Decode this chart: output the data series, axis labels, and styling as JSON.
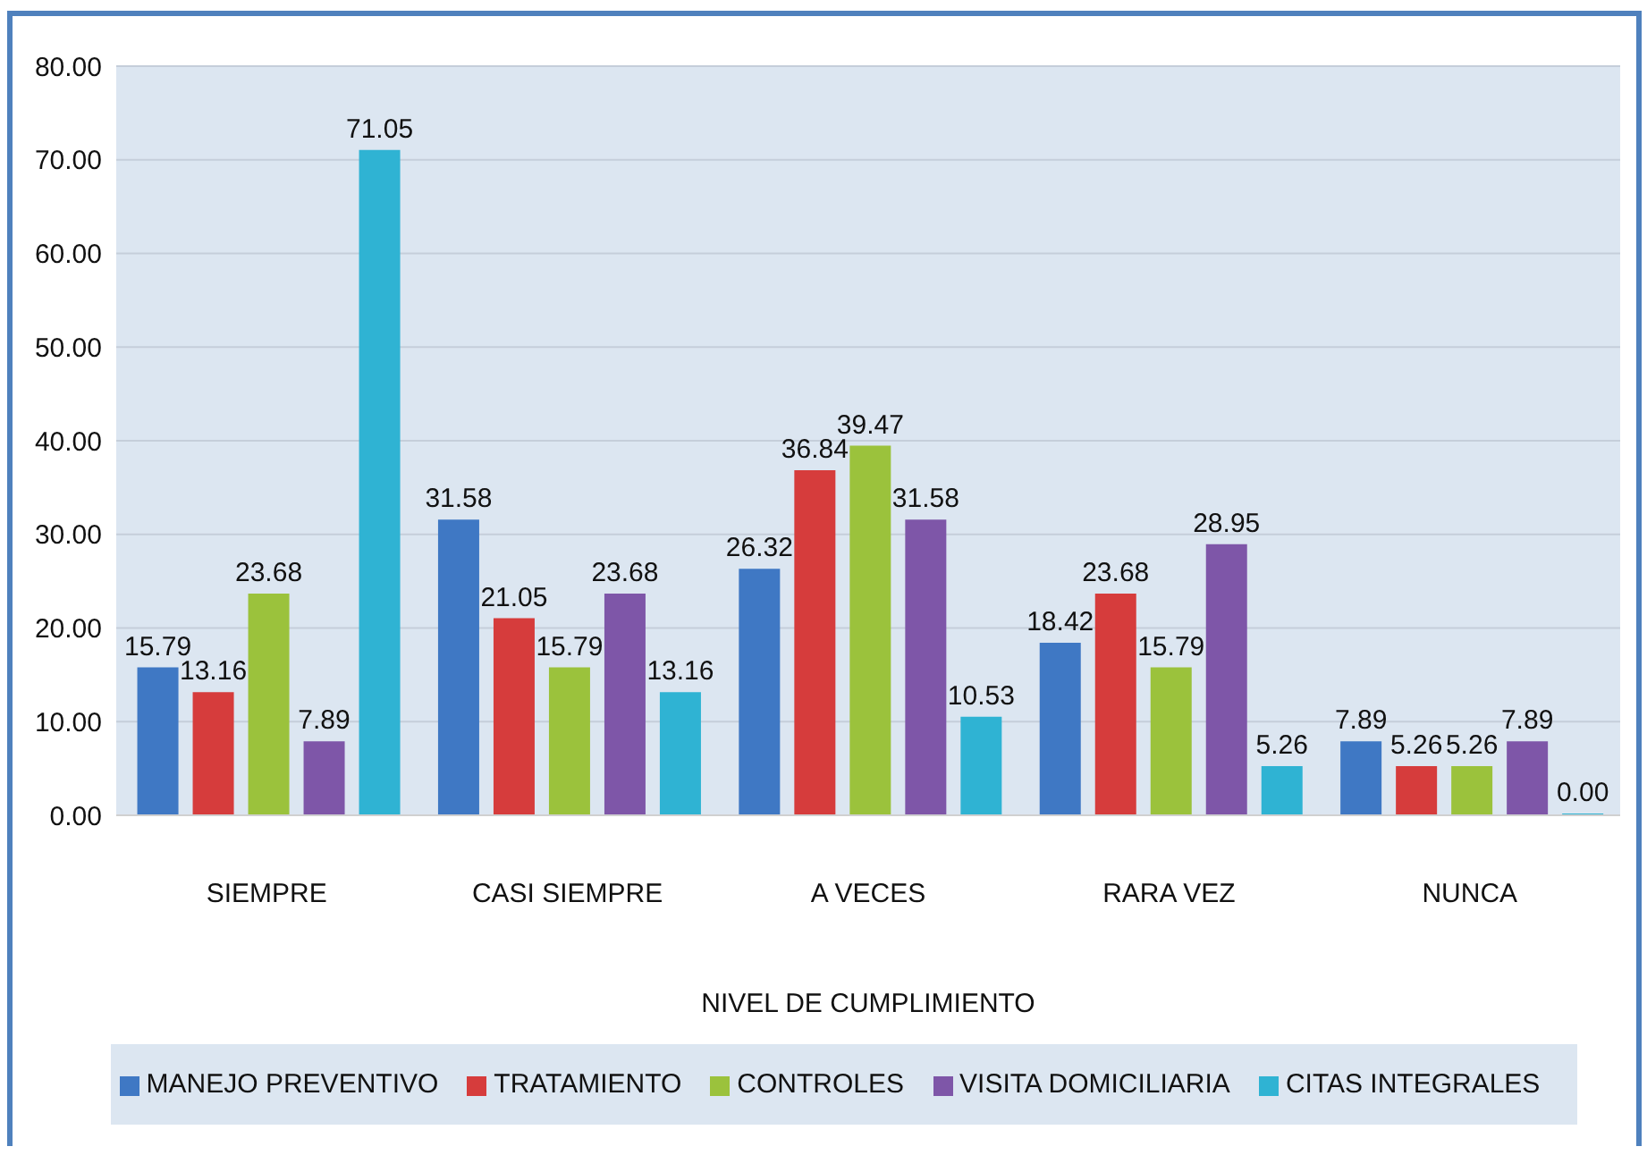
{
  "chart_data": {
    "type": "bar",
    "categories": [
      "SIEMPRE",
      "CASI SIEMPRE",
      "A VECES",
      "RARA VEZ",
      "NUNCA"
    ],
    "xlabel": "NIVEL DE CUMPLIMIENTO",
    "series": [
      {
        "name": "MANEJO PREVENTIVO",
        "color": "#3f78c4",
        "values": [
          15.79,
          31.58,
          26.32,
          18.42,
          7.89
        ],
        "value_labels": [
          "15.79",
          "31.58",
          "26.32",
          "18.42",
          "7.89"
        ]
      },
      {
        "name": "TRATAMIENTO",
        "color": "#d63c3c",
        "values": [
          13.16,
          21.05,
          36.84,
          23.68,
          5.26
        ],
        "value_labels": [
          "13.16",
          "21.05",
          "36.84",
          "23.68",
          "5.26"
        ]
      },
      {
        "name": "CONTROLES",
        "color": "#9bc23c",
        "values": [
          23.68,
          15.79,
          39.47,
          15.79,
          5.26
        ],
        "value_labels": [
          "23.68",
          "15.79",
          "39.47",
          "15.79",
          "5.26"
        ]
      },
      {
        "name": "VISITA DOMICILIARIA",
        "color": "#7e56a8",
        "values": [
          7.89,
          23.68,
          31.58,
          28.95,
          7.89
        ],
        "value_labels": [
          "7.89",
          "23.68",
          "31.58",
          "28.95",
          "7.89"
        ]
      },
      {
        "name": "CITAS INTEGRALES",
        "color": "#2fb3d3",
        "values": [
          71.05,
          13.16,
          10.53,
          5.26,
          0
        ],
        "value_labels": [
          "71.05",
          "13.16",
          "10.53",
          "5.26",
          "0.00"
        ]
      }
    ],
    "ylim": [
      0,
      80
    ],
    "yticks": [
      {
        "value": 0,
        "label": "0.00"
      },
      {
        "value": 10,
        "label": "10.00"
      },
      {
        "value": 20,
        "label": "20.00"
      },
      {
        "value": 30,
        "label": "30.00"
      },
      {
        "value": 40,
        "label": "40.00"
      },
      {
        "value": 50,
        "label": "50.00"
      },
      {
        "value": 60,
        "label": "60.00"
      },
      {
        "value": 70,
        "label": "70.00"
      },
      {
        "value": 80,
        "label": "80.00"
      }
    ],
    "grid": "y",
    "legend": "bottom"
  }
}
